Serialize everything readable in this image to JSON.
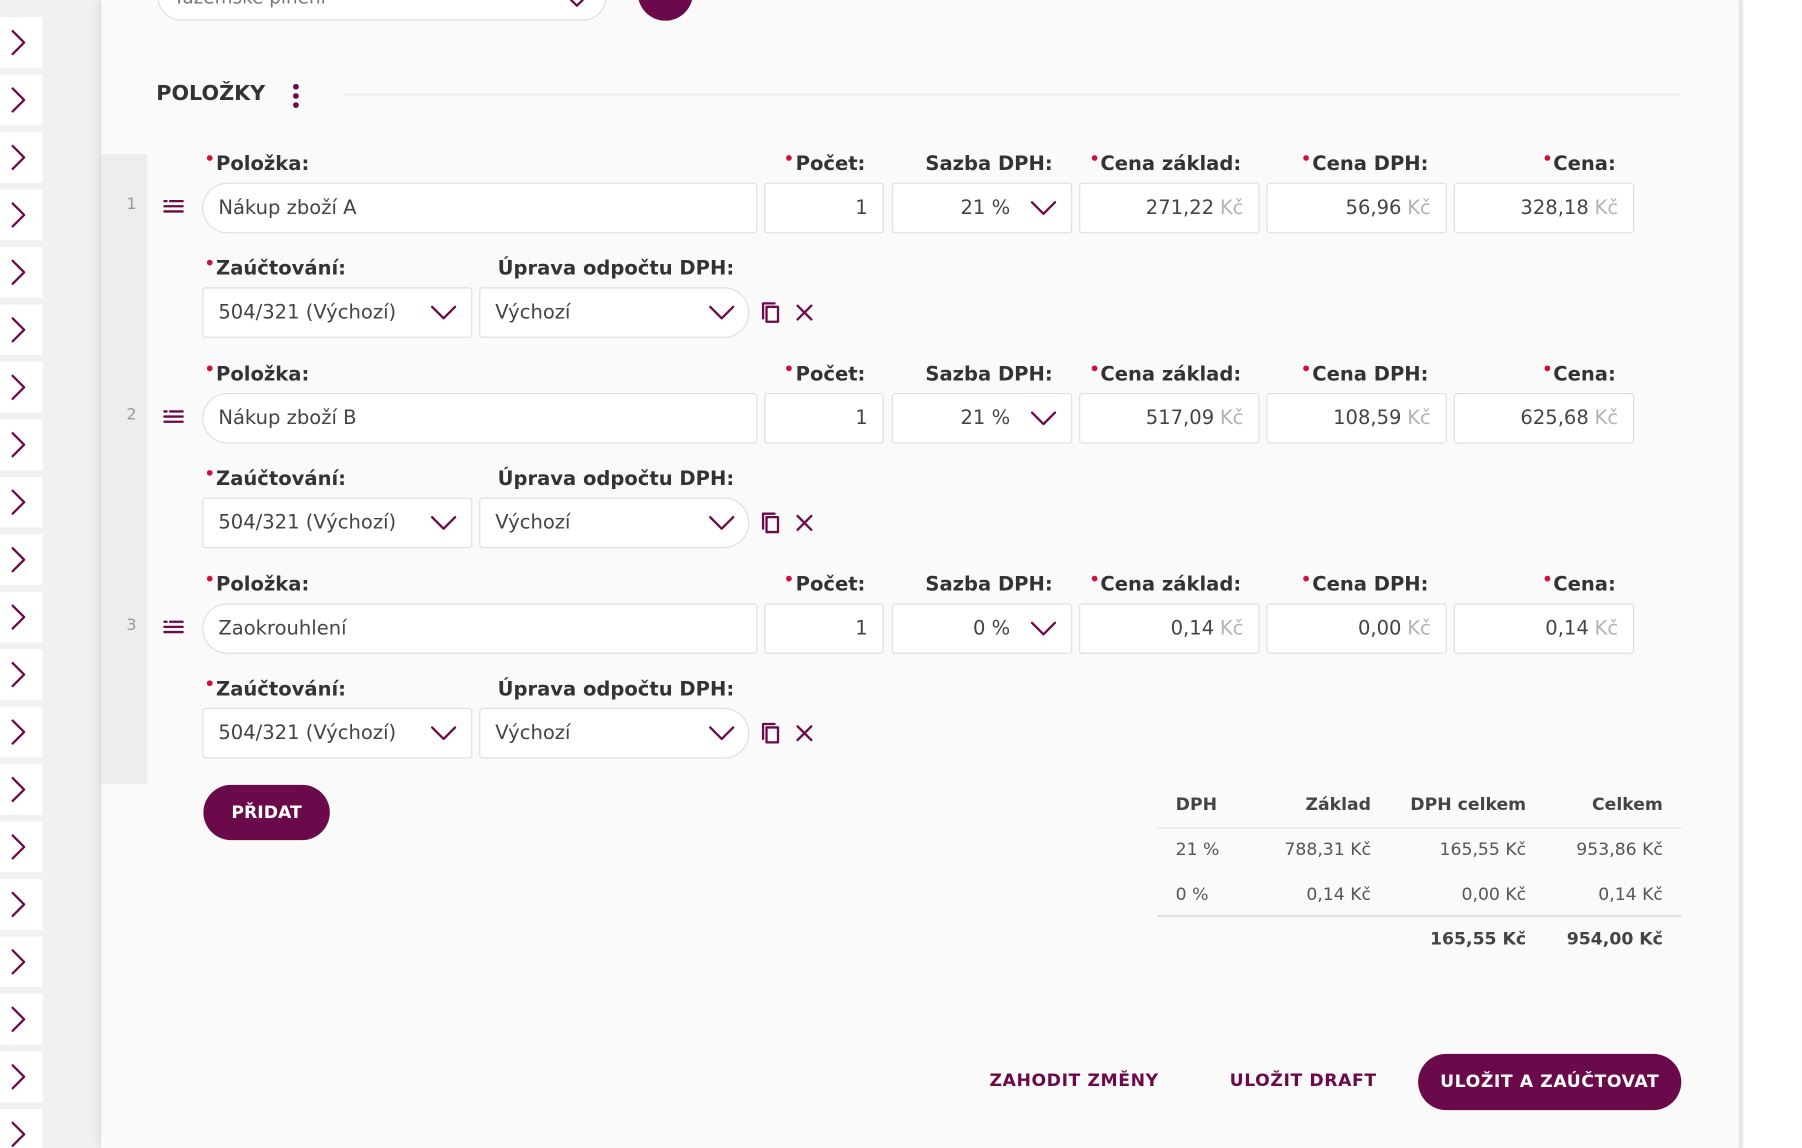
{
  "top_field": "Tuzemské plnění",
  "section_title": "POLOŽKY",
  "labels": {
    "item": "Položka:",
    "count": "Počet:",
    "vat_rate": "Sazba DPH:",
    "base": "Cena základ:",
    "vat": "Cena DPH:",
    "price": "Cena:",
    "account": "Zaúčtování:",
    "adjustment": "Úprava odpočtu DPH:"
  },
  "currency": "Kč",
  "items": [
    {
      "number": "1",
      "name": "Nákup zboží A",
      "count": "1",
      "vat_rate": "21 %",
      "base": "271,22",
      "vat": "56,96",
      "price": "328,18",
      "account": "504/321 (Výchozí)",
      "adjustment": "Výchozí"
    },
    {
      "number": "2",
      "name": "Nákup zboží B",
      "count": "1",
      "vat_rate": "21 %",
      "base": "517,09",
      "vat": "108,59",
      "price": "625,68",
      "account": "504/321 (Výchozí)",
      "adjustment": "Výchozí"
    },
    {
      "number": "3",
      "name": "Zaokrouhlení",
      "count": "1",
      "vat_rate": "0 %",
      "base": "0,14",
      "vat": "0,00",
      "price": "0,14",
      "account": "504/321 (Výchozí)",
      "adjustment": "Výchozí"
    }
  ],
  "add_button": "PŘIDAT",
  "summary": {
    "headers": [
      "DPH",
      "Základ",
      "DPH celkem",
      "Celkem"
    ],
    "rows": [
      [
        "21 %",
        "788,31 Kč",
        "165,55 Kč",
        "953,86 Kč"
      ],
      [
        "0 %",
        "0,14 Kč",
        "0,00 Kč",
        "0,14 Kč"
      ]
    ],
    "totals": [
      "165,55 Kč",
      "954,00 Kč"
    ]
  },
  "actions": {
    "discard": "ZAHODIT ZMĚNY",
    "draft": "ULOŽIT DRAFT",
    "save": "ULOŽIT A ZAÚČTOVAT"
  }
}
